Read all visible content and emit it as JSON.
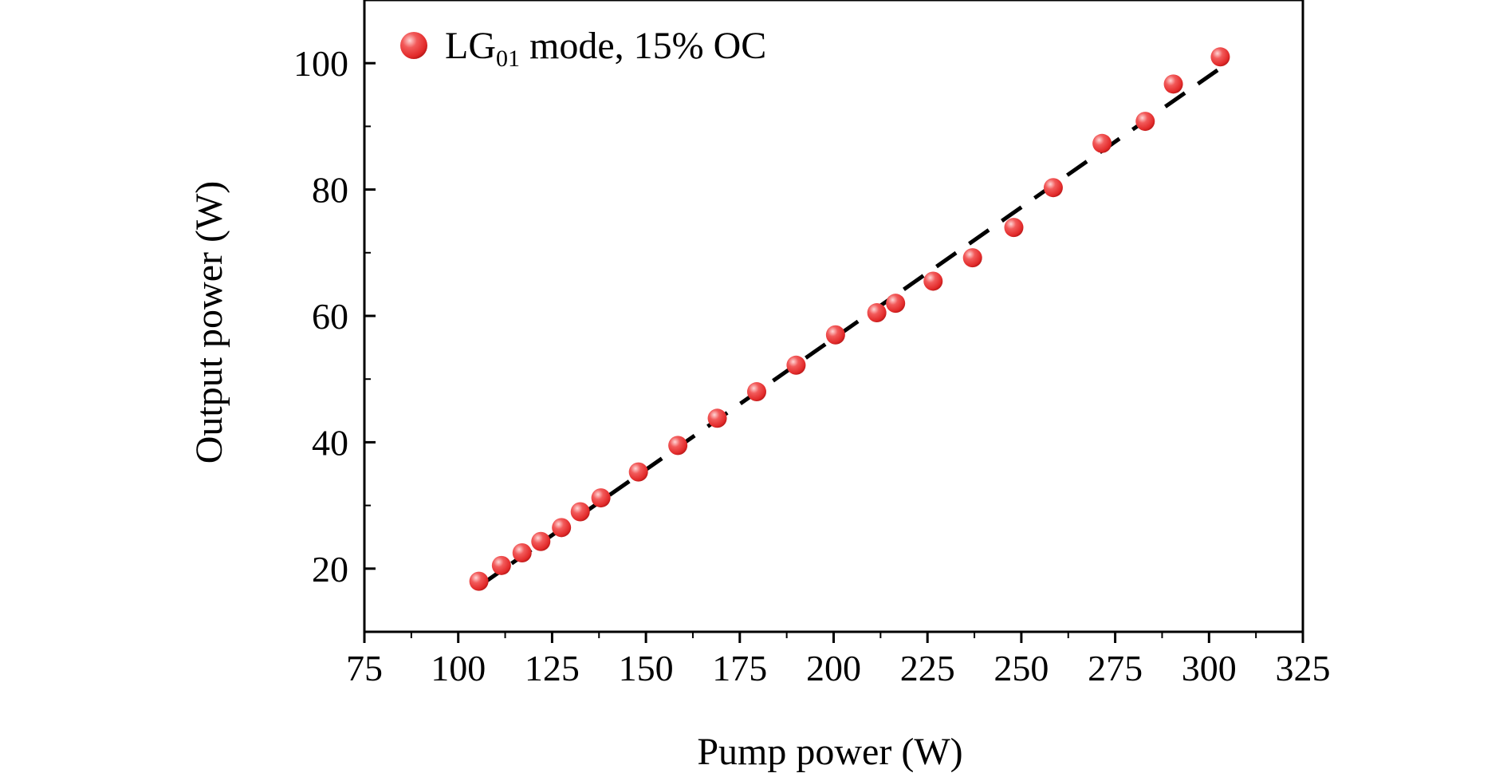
{
  "chart_data": {
    "type": "scatter",
    "xlabel": "Pump power (W)",
    "ylabel": "Output power (W)",
    "xlim": [
      75,
      325
    ],
    "ylim": [
      10,
      110
    ],
    "x_ticks": [
      "75",
      "100",
      "125",
      "150",
      "175",
      "200",
      "225",
      "250",
      "275",
      "300",
      "325"
    ],
    "y_ticks": [
      "20",
      "40",
      "60",
      "80",
      "100"
    ],
    "legend": {
      "position": "top-left",
      "label": "LG",
      "label_subscript": "01",
      "label_suffix": " mode, 15% OC"
    },
    "series": [
      {
        "name": "LG01 mode, 15% OC",
        "marker_color": "#ee3b3b",
        "points": [
          {
            "x": 105.5,
            "y": 18.0
          },
          {
            "x": 111.5,
            "y": 20.5
          },
          {
            "x": 117.0,
            "y": 22.5
          },
          {
            "x": 122.0,
            "y": 24.3
          },
          {
            "x": 127.5,
            "y": 26.5
          },
          {
            "x": 132.5,
            "y": 29.0
          },
          {
            "x": 138.0,
            "y": 31.2
          },
          {
            "x": 148.0,
            "y": 35.3
          },
          {
            "x": 158.5,
            "y": 39.5
          },
          {
            "x": 169.0,
            "y": 43.8
          },
          {
            "x": 179.5,
            "y": 48.0
          },
          {
            "x": 190.0,
            "y": 52.2
          },
          {
            "x": 200.5,
            "y": 57.0
          },
          {
            "x": 211.5,
            "y": 60.5
          },
          {
            "x": 216.5,
            "y": 62.0
          },
          {
            "x": 226.5,
            "y": 65.5
          },
          {
            "x": 237.0,
            "y": 69.2
          },
          {
            "x": 248.0,
            "y": 74.0
          },
          {
            "x": 258.5,
            "y": 80.3
          },
          {
            "x": 271.5,
            "y": 87.3
          },
          {
            "x": 283.0,
            "y": 90.8
          },
          {
            "x": 290.5,
            "y": 96.7
          },
          {
            "x": 303.0,
            "y": 101.0
          }
        ]
      }
    ],
    "fit_line": {
      "style": "dashed",
      "color": "#000000",
      "x": [
        105.5,
        303.0
      ],
      "y": [
        17.2,
        99.2
      ]
    }
  }
}
